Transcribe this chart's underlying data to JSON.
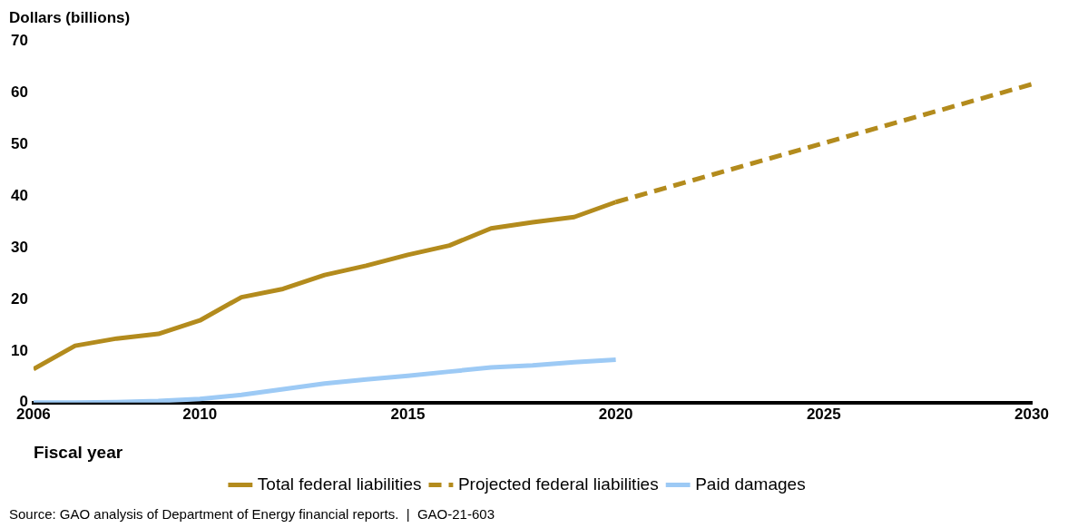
{
  "chart_data": {
    "type": "line",
    "ylabel": "Dollars (billions)",
    "xlabel": "Fiscal year",
    "annotations": [
      "Source: GAO analysis of Department of Energy financial reports.  |  GAO-21-603"
    ],
    "xlim": [
      2006,
      2030
    ],
    "xticks": [
      2006,
      2010,
      2015,
      2020,
      2025,
      2030
    ],
    "ylim": [
      0,
      70
    ],
    "yticks": [
      0,
      10,
      20,
      30,
      40,
      50,
      60,
      70
    ],
    "grid": false,
    "legend": "bottom",
    "marker": "none",
    "series": [
      {
        "name": "Total federal liabilities",
        "color": "#b38b1d",
        "line_style": "solid",
        "x": [
          2006,
          2007,
          2008,
          2009,
          2010,
          2011,
          2012,
          2013,
          2014,
          2015,
          2016,
          2017,
          2018,
          2019,
          2020
        ],
        "values": [
          6.5,
          11,
          12.4,
          13.3,
          15.9,
          20.4,
          22,
          24.7,
          26.5,
          28.6,
          30.4,
          33.7,
          34.9,
          35.9,
          38.8
        ]
      },
      {
        "name": "Projected federal liabilities",
        "color": "#b38b1d",
        "line_style": "dashed",
        "x": [
          2020,
          2030
        ],
        "values": [
          38.8,
          61.6
        ]
      },
      {
        "name": "Paid damages",
        "color": "#9dcaf5",
        "line_style": "solid",
        "x": [
          2006,
          2007,
          2008,
          2009,
          2010,
          2011,
          2012,
          2013,
          2014,
          2015,
          2016,
          2017,
          2018,
          2019,
          2020
        ],
        "values": [
          0,
          0,
          0.1,
          0.3,
          0.7,
          1.5,
          2.6,
          3.7,
          4.5,
          5.2,
          6,
          6.8,
          7.2,
          7.8,
          8.3
        ]
      }
    ]
  }
}
